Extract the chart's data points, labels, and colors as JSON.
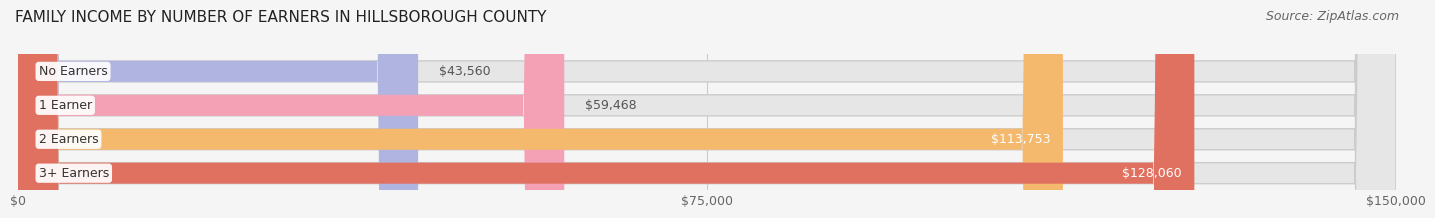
{
  "title": "FAMILY INCOME BY NUMBER OF EARNERS IN HILLSBOROUGH COUNTY",
  "source": "Source: ZipAtlas.com",
  "categories": [
    "No Earners",
    "1 Earner",
    "2 Earners",
    "3+ Earners"
  ],
  "values": [
    43560,
    59468,
    113753,
    128060
  ],
  "bar_colors": [
    "#b0b4e0",
    "#f4a0b5",
    "#f5b96e",
    "#e07060"
  ],
  "label_texts": [
    "$43,560",
    "$59,468",
    "$113,753",
    "$128,060"
  ],
  "label_inside": [
    false,
    false,
    true,
    true
  ],
  "x_ticks": [
    0,
    75000,
    150000
  ],
  "x_tick_labels": [
    "$0",
    "$75,000",
    "$150,000"
  ],
  "xlim": [
    0,
    150000
  ],
  "background_color": "#f5f5f5",
  "bar_bg_color": "#e6e6e6",
  "title_fontsize": 11,
  "source_fontsize": 9,
  "bar_height": 0.62,
  "bar_gap": 0.15
}
